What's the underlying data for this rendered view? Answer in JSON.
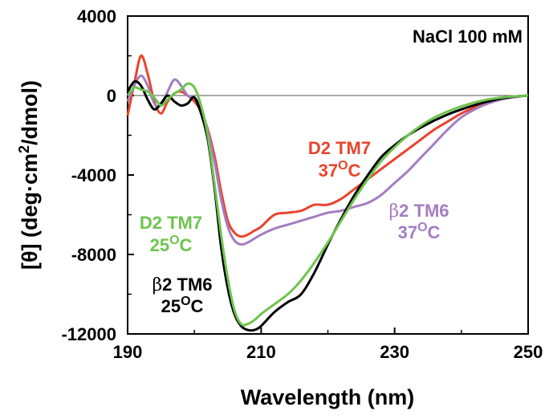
{
  "chart_data": {
    "type": "line",
    "xlabel": "Wavelength (nm)",
    "ylabel_prefix": "[θ] (deg·cm",
    "ylabel_sup": "2",
    "ylabel_suffix": "/dmol)",
    "xlim": [
      190,
      250
    ],
    "ylim": [
      -12000,
      4000
    ],
    "x_ticks": [
      190,
      210,
      230,
      250
    ],
    "y_ticks": [
      4000,
      0,
      -4000,
      -8000,
      -12000
    ],
    "x_tick_labels": [
      "190",
      "210",
      "230",
      "250"
    ],
    "y_tick_labels": [
      "4000",
      "0",
      "-4000",
      "-8000",
      "-12000"
    ],
    "zero_line": true,
    "grid": false,
    "condition": "NaCl 100 mM",
    "series": [
      {
        "color": "#e8442c",
        "x": [
          190,
          191,
          192,
          193,
          194,
          195,
          196,
          197,
          198,
          199,
          200,
          201,
          202,
          203,
          204,
          205,
          206,
          207,
          208,
          209,
          210,
          212,
          214,
          216,
          218,
          220,
          222,
          224,
          226,
          228,
          230,
          232,
          234,
          236,
          238,
          240,
          242,
          244,
          246,
          248,
          250
        ],
        "y": [
          -1000,
          600,
          2000,
          1100,
          -300,
          -900,
          -300,
          100,
          200,
          0,
          -300,
          -800,
          -1700,
          -3000,
          -4800,
          -6300,
          -6900,
          -7100,
          -7000,
          -6800,
          -6600,
          -6000,
          -5900,
          -5800,
          -5500,
          -5500,
          -5200,
          -4700,
          -4200,
          -3700,
          -3200,
          -2700,
          -2200,
          -1700,
          -1300,
          -900,
          -600,
          -350,
          -180,
          -60,
          0
        ]
      },
      {
        "color": "#a47dc2",
        "x": [
          190,
          191,
          192,
          193,
          194,
          195,
          196,
          197,
          198,
          199,
          200,
          201,
          202,
          203,
          204,
          205,
          206,
          207,
          208,
          209,
          210,
          212,
          214,
          216,
          218,
          220,
          222,
          224,
          226,
          228,
          230,
          232,
          234,
          236,
          238,
          240,
          242,
          244,
          246,
          248,
          250
        ],
        "y": [
          -300,
          500,
          1000,
          500,
          -400,
          -500,
          200,
          800,
          500,
          0,
          -100,
          -600,
          -1800,
          -3300,
          -5200,
          -6600,
          -7300,
          -7500,
          -7400,
          -7200,
          -7000,
          -6700,
          -6500,
          -6300,
          -6100,
          -5900,
          -5800,
          -5600,
          -5400,
          -5000,
          -4400,
          -3800,
          -3100,
          -2400,
          -1700,
          -1100,
          -700,
          -400,
          -200,
          -80,
          0
        ]
      },
      {
        "color": "#000000",
        "x": [
          190,
          191,
          192,
          193,
          194,
          195,
          196,
          197,
          198,
          199,
          200,
          201,
          202,
          203,
          204,
          205,
          206,
          207,
          208,
          209,
          210,
          212,
          214,
          216,
          218,
          220,
          222,
          224,
          226,
          228,
          230,
          232,
          234,
          236,
          238,
          240,
          242,
          244,
          246,
          248,
          250
        ],
        "y": [
          200,
          700,
          500,
          -200,
          -700,
          -400,
          0,
          -300,
          -500,
          -400,
          -100,
          -900,
          -2200,
          -4600,
          -7600,
          -9700,
          -11000,
          -11600,
          -11800,
          -11800,
          -11600,
          -10900,
          -10400,
          -10000,
          -8900,
          -7500,
          -6200,
          -5000,
          -4000,
          -3100,
          -2500,
          -2000,
          -1600,
          -1250,
          -950,
          -700,
          -480,
          -300,
          -150,
          -50,
          0
        ]
      },
      {
        "color": "#6ec44e",
        "x": [
          190,
          191,
          192,
          193,
          194,
          195,
          196,
          197,
          198,
          199,
          200,
          201,
          202,
          203,
          204,
          205,
          206,
          207,
          208,
          209,
          210,
          212,
          214,
          216,
          218,
          220,
          222,
          224,
          226,
          228,
          230,
          232,
          234,
          236,
          238,
          240,
          242,
          244,
          246,
          248,
          250
        ],
        "y": [
          0,
          400,
          300,
          200,
          -100,
          -500,
          -200,
          100,
          300,
          600,
          400,
          -500,
          -2000,
          -4400,
          -7000,
          -9200,
          -10800,
          -11500,
          -11500,
          -11300,
          -11000,
          -10500,
          -10000,
          -9300,
          -8400,
          -7400,
          -6300,
          -5200,
          -4200,
          -3300,
          -2600,
          -2000,
          -1500,
          -1100,
          -800,
          -550,
          -350,
          -200,
          -100,
          -40,
          0
        ]
      }
    ],
    "annotations": [
      {
        "text": "D2 TM7",
        "temp": "37",
        "deg": "O",
        "unit": "C",
        "color": "#e8442c",
        "prefix": ""
      },
      {
        "text": "2 TM6",
        "temp": "37",
        "deg": "O",
        "unit": "C",
        "color": "#a47dc2",
        "prefix": "β"
      },
      {
        "text": "D2 TM7",
        "temp": "25",
        "deg": "O",
        "unit": "C",
        "color": "#6ec44e",
        "prefix": ""
      },
      {
        "text": "2 TM6",
        "temp": "25",
        "deg": "O",
        "unit": "C",
        "color": "#000000",
        "prefix": "β"
      }
    ]
  }
}
